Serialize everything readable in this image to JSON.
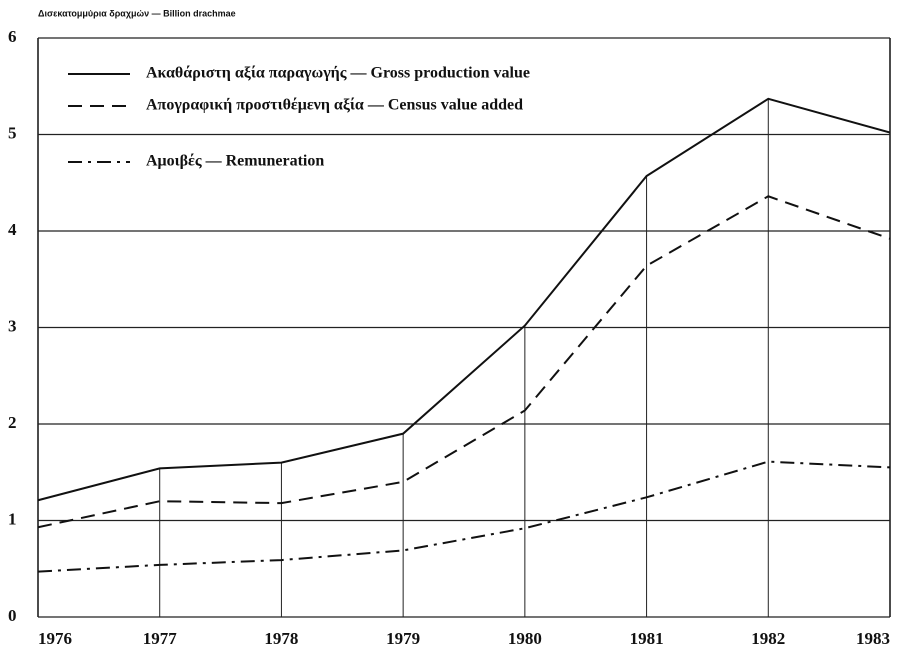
{
  "chart_data": {
    "type": "line",
    "units_label": "Δισεκατομμύρια δραχμών — Billion drachmae",
    "categories": [
      "1976",
      "1977",
      "1978",
      "1979",
      "1980",
      "1981",
      "1982",
      "1983"
    ],
    "series": [
      {
        "name": "Ακαθάριστη αξία παραγωγής — Gross production value",
        "color": "#111111",
        "linestyle": "solid",
        "values": [
          1.21,
          1.54,
          1.6,
          1.9,
          3.02,
          4.57,
          5.37,
          5.02
        ]
      },
      {
        "name": "Απογραφική προστιθέμενη αξία — Census value added",
        "color": "#111111",
        "linestyle": "dashed",
        "values": [
          0.93,
          1.2,
          1.18,
          1.4,
          2.14,
          3.64,
          4.36,
          3.92
        ]
      },
      {
        "name": "Αμοιβές — Remuneration",
        "color": "#111111",
        "linestyle": "dashdot",
        "values": [
          0.47,
          0.54,
          0.59,
          0.69,
          0.92,
          1.24,
          1.61,
          1.55
        ]
      }
    ],
    "ylim": [
      0,
      6
    ],
    "yticks": [
      0,
      1,
      2,
      3,
      4,
      5,
      6
    ],
    "grid": true,
    "legend": "upper left"
  }
}
